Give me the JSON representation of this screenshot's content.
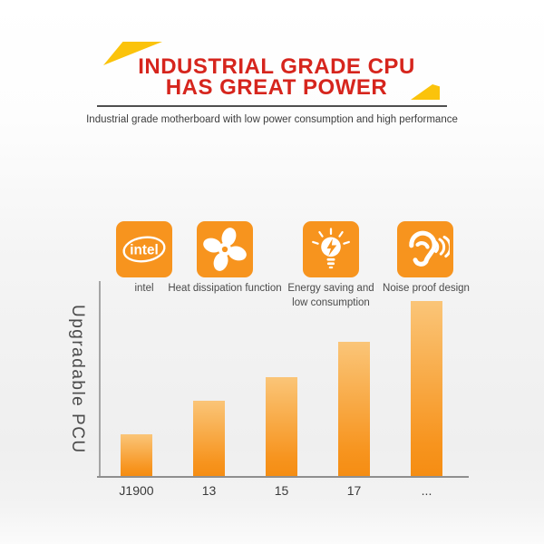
{
  "header": {
    "title_line1": "INDUSTRIAL GRADE CPU",
    "title_line2": "HAS GREAT POWER",
    "subtitle": "Industrial grade motherboard with low power consumption and high performance"
  },
  "features": [
    {
      "icon": "intel-logo-icon",
      "icon_text": "intel",
      "label1": "intel",
      "label2": ""
    },
    {
      "icon": "fan-icon",
      "label1": "Heat dissipation function",
      "label2": ""
    },
    {
      "icon": "lightbulb-icon",
      "label1": "Energy saving and",
      "label2": "low consumption"
    },
    {
      "icon": "ear-sound-waves-icon",
      "label1": "Noise proof design",
      "label2": ""
    }
  ],
  "chart_data": {
    "type": "bar",
    "title": "",
    "xlabel": "",
    "ylabel": "Upgradable PCU",
    "categories": [
      "J1900",
      "13",
      "15",
      "17",
      "..."
    ],
    "values": [
      46,
      83,
      109,
      148,
      193
    ],
    "ylim": [
      0,
      216
    ],
    "axis_numeric_labels": false,
    "grid": false,
    "legend_position": "none",
    "bar_gradient_top": "#FAC578",
    "bar_gradient_bottom": "#F7941E"
  },
  "colors": {
    "accent_orange": "#F7941E",
    "accent_yellow": "#FBC30B",
    "title_red": "#D6251D",
    "axis_gray": "#9A9A9A",
    "text_dark": "#3D3D3D",
    "background_gray": "#F2F2F2"
  }
}
